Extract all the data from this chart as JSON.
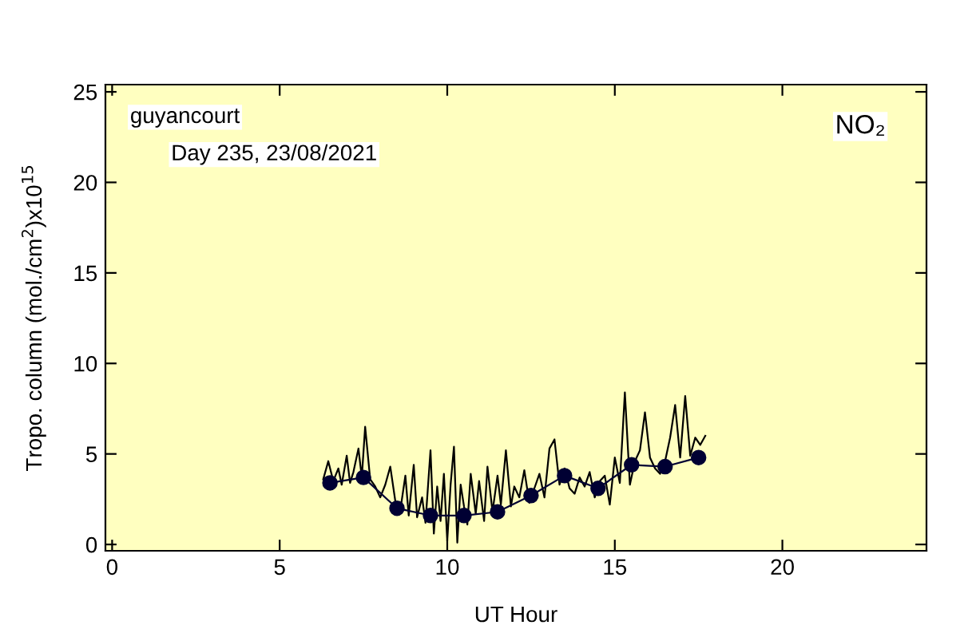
{
  "chart_data": {
    "type": "line",
    "xlabel": "UT Hour",
    "ylabel": "Tropo. column (mol./cm$^{2}$)x10$^{15}$",
    "annotations": [
      "guyancourt",
      "Day 235, 23/08/2021",
      "NO₂"
    ],
    "xlim": [
      -0.2,
      24.3
    ],
    "ylim": [
      -0.35,
      25.4
    ],
    "xticks": [
      0,
      5,
      10,
      15,
      20
    ],
    "yticks": [
      0,
      5,
      10,
      15,
      20,
      25
    ],
    "grid": false,
    "legend": false,
    "series": [
      {
        "color": "#000000",
        "marker": "none",
        "x": [
          6.3,
          6.45,
          6.6,
          6.75,
          6.85,
          7.0,
          7.1,
          7.2,
          7.35,
          7.45,
          7.55,
          7.7,
          7.85,
          8.0,
          8.15,
          8.3,
          8.45,
          8.6,
          8.75,
          8.85,
          9.0,
          9.1,
          9.25,
          9.35,
          9.5,
          9.6,
          9.7,
          9.8,
          9.9,
          10.0,
          10.1,
          10.2,
          10.3,
          10.4,
          10.5,
          10.6,
          10.7,
          10.85,
          10.95,
          11.1,
          11.2,
          11.35,
          11.5,
          11.6,
          11.75,
          11.9,
          12.0,
          12.15,
          12.3,
          12.45,
          12.6,
          12.75,
          12.9,
          13.05,
          13.2,
          13.35,
          13.5,
          13.65,
          13.8,
          13.95,
          14.1,
          14.25,
          14.4,
          14.55,
          14.7,
          14.85,
          15.0,
          15.15,
          15.3,
          15.45,
          15.6,
          15.75,
          15.9,
          16.05,
          16.2,
          16.35,
          16.5,
          16.65,
          16.8,
          16.95,
          17.1,
          17.25,
          17.4,
          17.55,
          17.7
        ],
        "values": [
          3.6,
          4.6,
          3.5,
          4.2,
          3.3,
          4.9,
          3.4,
          4.0,
          5.3,
          3.7,
          6.5,
          3.6,
          3.2,
          2.6,
          3.3,
          4.3,
          2.4,
          1.9,
          3.8,
          1.6,
          4.4,
          1.5,
          2.6,
          1.2,
          5.2,
          0.6,
          3.2,
          1.3,
          3.9,
          0.2,
          3.3,
          5.4,
          0.1,
          3.3,
          2.1,
          1.1,
          3.9,
          1.7,
          3.5,
          1.3,
          4.3,
          1.8,
          3.8,
          2.2,
          5.2,
          2.1,
          3.2,
          2.6,
          4.1,
          2.3,
          3.1,
          3.9,
          2.6,
          5.3,
          5.8,
          3.3,
          4.2,
          3.1,
          2.8,
          3.7,
          3.2,
          4.0,
          2.6,
          3.5,
          3.8,
          2.2,
          4.8,
          3.4,
          8.4,
          3.3,
          4.6,
          5.2,
          7.3,
          4.8,
          4.2,
          3.9,
          4.6,
          5.9,
          7.7,
          4.8,
          8.2,
          4.9,
          5.9,
          5.5,
          6.0
        ]
      },
      {
        "color": "#000033",
        "marker": "circle",
        "x": [
          6.5,
          7.5,
          8.5,
          9.5,
          10.5,
          11.5,
          12.5,
          13.5,
          14.5,
          15.5,
          16.5,
          17.5
        ],
        "values": [
          3.4,
          3.7,
          2.0,
          1.6,
          1.6,
          1.8,
          2.7,
          3.8,
          3.1,
          4.4,
          4.3,
          4.8
        ]
      }
    ]
  }
}
